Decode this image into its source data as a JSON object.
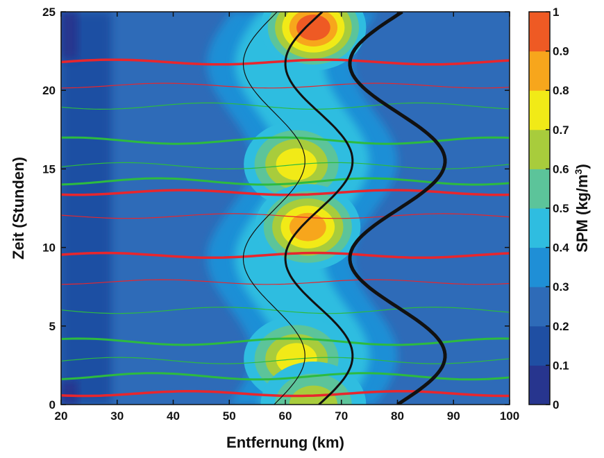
{
  "chart_data": {
    "type": "heatmap",
    "title": "",
    "xlabel": "Entfernung (km)",
    "ylabel": "Zeit (Stunden)",
    "xlim": [
      20,
      100
    ],
    "ylim": [
      0,
      25
    ],
    "x_ticks": [
      "20",
      "30",
      "40",
      "50",
      "60",
      "70",
      "80",
      "90",
      "100"
    ],
    "y_ticks": [
      "0",
      "5",
      "10",
      "15",
      "20",
      "25"
    ],
    "colorbar": {
      "label_prefix": "SPM (kg/m",
      "label_sup": "3",
      "label_suffix": ")",
      "range": [
        0,
        1
      ],
      "ticks": [
        "0",
        "0.1",
        "0.2",
        "0.3",
        "0.4",
        "0.5",
        "0.6",
        "0.7",
        "0.8",
        "0.9",
        "1"
      ],
      "colors": [
        "#27358e",
        "#1f4fa3",
        "#2e6bb8",
        "#1f8fd6",
        "#2fbde0",
        "#5cc49a",
        "#a8cc3c",
        "#f1ea17",
        "#f7a61c",
        "#ee5a24"
      ]
    },
    "background_level_color": "#2e6bb8",
    "turbidity_maxima": [
      {
        "x": 65,
        "y": 24.0,
        "peak": 0.86
      },
      {
        "x": 62,
        "y": 15.3,
        "peak": 0.72
      },
      {
        "x": 64,
        "y": 11.3,
        "peak": 0.8
      },
      {
        "x": 62,
        "y": 2.9,
        "peak": 0.74
      },
      {
        "x": 65,
        "y": 0.0,
        "peak": 0.62
      }
    ],
    "series": [
      {
        "color": "#111111",
        "weight": "thin",
        "x_mean": 58,
        "amplitude": 5.5
      },
      {
        "color": "#111111",
        "weight": "medium",
        "x_mean": 66,
        "amplitude": 6
      },
      {
        "color": "#111111",
        "weight": "thick",
        "x_mean": 80,
        "amplitude": 8.5
      }
    ],
    "red_contours_y": [
      0.7,
      7.8,
      9.5,
      12.0,
      13.5,
      20.3,
      21.8
    ],
    "green_contours_y": [
      1.8,
      2.8,
      4.0,
      6.0,
      14.2,
      15.2,
      16.8,
      19.0
    ]
  }
}
